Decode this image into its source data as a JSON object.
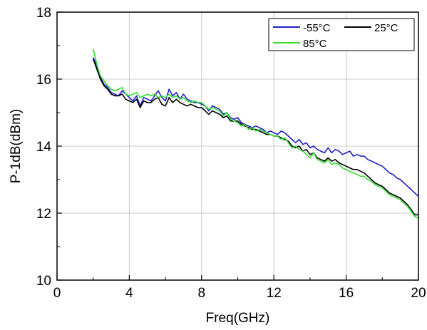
{
  "chart_data": {
    "type": "line",
    "xlabel": "Freq(GHz)",
    "ylabel": "P-1dB(dBm)",
    "xlim": [
      0,
      20
    ],
    "ylim": [
      10,
      18
    ],
    "xticks": [
      0,
      4,
      8,
      12,
      16,
      20
    ],
    "yticks": [
      10,
      12,
      14,
      16,
      18
    ],
    "grid": true,
    "legend_position": "top-right",
    "series": [
      {
        "name": "-55°C",
        "color": "#1f1fcc",
        "x": [
          2.0,
          2.2,
          2.4,
          2.6,
          2.8,
          3.0,
          3.2,
          3.4,
          3.6,
          3.8,
          4.0,
          4.2,
          4.4,
          4.6,
          4.8,
          5.0,
          5.2,
          5.4,
          5.6,
          5.8,
          6.0,
          6.2,
          6.4,
          6.6,
          6.8,
          7.0,
          7.2,
          7.4,
          7.6,
          7.8,
          8.0,
          8.2,
          8.4,
          8.6,
          8.8,
          9.0,
          9.2,
          9.4,
          9.6,
          9.8,
          10.0,
          10.2,
          10.4,
          10.6,
          10.8,
          11.0,
          11.2,
          11.4,
          11.6,
          11.8,
          12.0,
          12.2,
          12.4,
          12.6,
          12.8,
          13.0,
          13.2,
          13.4,
          13.6,
          13.8,
          14.0,
          14.2,
          14.4,
          14.6,
          14.8,
          15.0,
          15.2,
          15.4,
          15.6,
          15.8,
          16.0,
          16.2,
          16.4,
          16.6,
          16.8,
          17.0,
          17.2,
          17.4,
          17.6,
          17.8,
          18.0,
          18.2,
          18.4,
          18.6,
          18.8,
          19.0,
          19.2,
          19.4,
          19.6,
          19.8,
          20.0
        ],
        "y": [
          16.65,
          16.4,
          16.05,
          15.85,
          15.75,
          15.6,
          15.55,
          15.5,
          15.65,
          15.55,
          15.45,
          15.35,
          15.5,
          15.2,
          15.45,
          15.4,
          15.35,
          15.5,
          15.65,
          15.45,
          15.35,
          15.7,
          15.5,
          15.6,
          15.4,
          15.55,
          15.4,
          15.35,
          15.3,
          15.3,
          15.25,
          15.2,
          15.05,
          15.2,
          15.15,
          15.1,
          14.95,
          15.0,
          14.85,
          14.8,
          14.85,
          14.7,
          14.65,
          14.6,
          14.55,
          14.6,
          14.55,
          14.5,
          14.4,
          14.45,
          14.4,
          14.35,
          14.45,
          14.4,
          14.3,
          14.2,
          14.1,
          14.2,
          14.05,
          14.1,
          13.95,
          14.0,
          13.9,
          13.85,
          13.8,
          13.95,
          13.8,
          13.9,
          13.85,
          13.75,
          13.8,
          13.85,
          13.7,
          13.75,
          13.7,
          13.7,
          13.6,
          13.55,
          13.5,
          13.45,
          13.4,
          13.3,
          13.2,
          13.15,
          13.05,
          13.0,
          12.9,
          12.8,
          12.7,
          12.6,
          12.5
        ]
      },
      {
        "name": "25°C",
        "color": "#000000",
        "x": [
          2.0,
          2.2,
          2.4,
          2.6,
          2.8,
          3.0,
          3.2,
          3.4,
          3.6,
          3.8,
          4.0,
          4.2,
          4.4,
          4.6,
          4.8,
          5.0,
          5.2,
          5.4,
          5.6,
          5.8,
          6.0,
          6.2,
          6.4,
          6.6,
          6.8,
          7.0,
          7.2,
          7.4,
          7.6,
          7.8,
          8.0,
          8.2,
          8.4,
          8.6,
          8.8,
          9.0,
          9.2,
          9.4,
          9.6,
          9.8,
          10.0,
          10.2,
          10.4,
          10.6,
          10.8,
          11.0,
          11.2,
          11.4,
          11.6,
          11.8,
          12.0,
          12.2,
          12.4,
          12.6,
          12.8,
          13.0,
          13.2,
          13.4,
          13.6,
          13.8,
          14.0,
          14.2,
          14.4,
          14.6,
          14.8,
          15.0,
          15.2,
          15.4,
          15.6,
          15.8,
          16.0,
          16.2,
          16.4,
          16.6,
          16.8,
          17.0,
          17.2,
          17.4,
          17.6,
          17.8,
          18.0,
          18.2,
          18.4,
          18.6,
          18.8,
          19.0,
          19.2,
          19.4,
          19.6,
          19.8,
          20.0
        ],
        "y": [
          16.6,
          16.3,
          16.0,
          15.8,
          15.7,
          15.55,
          15.5,
          15.5,
          15.55,
          15.4,
          15.35,
          15.3,
          15.4,
          15.15,
          15.35,
          15.3,
          15.3,
          15.4,
          15.45,
          15.25,
          15.2,
          15.45,
          15.3,
          15.4,
          15.3,
          15.25,
          15.2,
          15.25,
          15.2,
          15.15,
          15.15,
          15.05,
          14.95,
          15.05,
          15.0,
          14.95,
          14.85,
          14.9,
          14.75,
          14.75,
          14.75,
          14.65,
          14.6,
          14.55,
          14.5,
          14.5,
          14.45,
          14.4,
          14.35,
          14.35,
          14.3,
          14.3,
          14.25,
          14.2,
          14.15,
          14.0,
          13.95,
          14.0,
          13.85,
          13.9,
          13.75,
          13.8,
          13.65,
          13.6,
          13.55,
          13.65,
          13.55,
          13.6,
          13.5,
          13.45,
          13.4,
          13.35,
          13.3,
          13.3,
          13.25,
          13.2,
          13.1,
          13.0,
          12.9,
          12.85,
          12.8,
          12.7,
          12.6,
          12.55,
          12.5,
          12.45,
          12.35,
          12.25,
          12.1,
          11.95,
          11.95
        ]
      },
      {
        "name": "85°C",
        "color": "#33dd33",
        "x": [
          2.0,
          2.2,
          2.4,
          2.6,
          2.8,
          3.0,
          3.2,
          3.4,
          3.6,
          3.8,
          4.0,
          4.2,
          4.4,
          4.6,
          4.8,
          5.0,
          5.2,
          5.4,
          5.6,
          5.8,
          6.0,
          6.2,
          6.4,
          6.6,
          6.8,
          7.0,
          7.2,
          7.4,
          7.6,
          7.8,
          8.0,
          8.2,
          8.4,
          8.6,
          8.8,
          9.0,
          9.2,
          9.4,
          9.6,
          9.8,
          10.0,
          10.2,
          10.4,
          10.6,
          10.8,
          11.0,
          11.2,
          11.4,
          11.6,
          11.8,
          12.0,
          12.2,
          12.4,
          12.6,
          12.8,
          13.0,
          13.2,
          13.4,
          13.6,
          13.8,
          14.0,
          14.2,
          14.4,
          14.6,
          14.8,
          15.0,
          15.2,
          15.4,
          15.6,
          15.8,
          16.0,
          16.2,
          16.4,
          16.6,
          16.8,
          17.0,
          17.2,
          17.4,
          17.6,
          17.8,
          18.0,
          18.2,
          18.4,
          18.6,
          18.8,
          19.0,
          19.2,
          19.4,
          19.6,
          19.8,
          20.0
        ],
        "y": [
          16.9,
          16.45,
          16.1,
          15.95,
          15.8,
          15.7,
          15.65,
          15.7,
          15.75,
          15.55,
          15.5,
          15.55,
          15.6,
          15.45,
          15.5,
          15.55,
          15.5,
          15.55,
          15.45,
          15.5,
          15.45,
          15.55,
          15.45,
          15.5,
          15.4,
          15.45,
          15.35,
          15.3,
          15.35,
          15.3,
          15.3,
          15.2,
          15.1,
          15.15,
          15.1,
          15.05,
          14.9,
          15.0,
          14.8,
          14.75,
          14.7,
          14.6,
          14.65,
          14.5,
          14.55,
          14.45,
          14.5,
          14.45,
          14.4,
          14.35,
          14.3,
          14.3,
          14.2,
          14.25,
          14.1,
          13.95,
          14.0,
          13.9,
          13.85,
          13.75,
          13.65,
          13.8,
          13.6,
          13.55,
          13.5,
          13.6,
          13.45,
          13.5,
          13.45,
          13.35,
          13.3,
          13.25,
          13.2,
          13.15,
          13.1,
          13.1,
          13.0,
          12.95,
          12.85,
          12.8,
          12.75,
          12.65,
          12.55,
          12.5,
          12.45,
          12.4,
          12.3,
          12.2,
          12.05,
          11.9,
          11.85
        ]
      }
    ]
  }
}
